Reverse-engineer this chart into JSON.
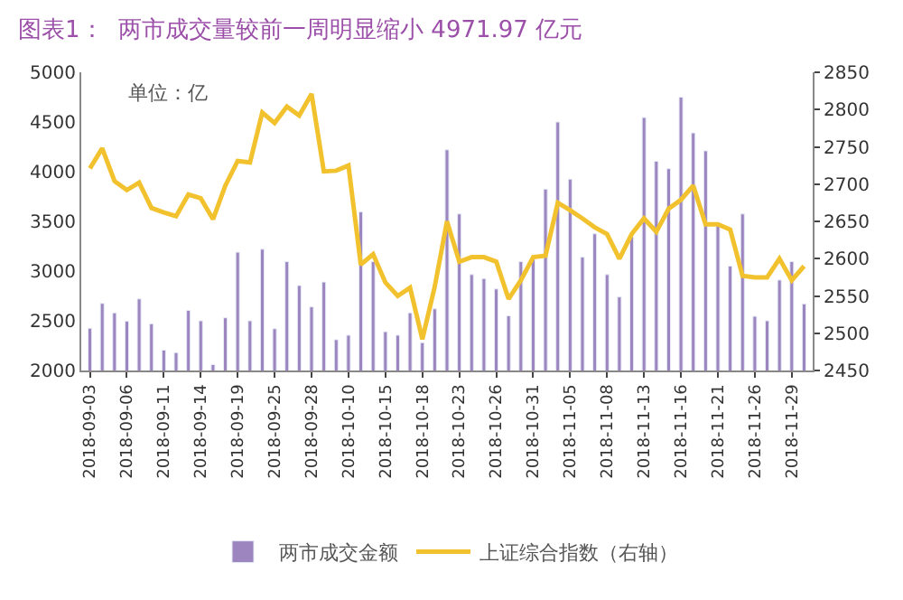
{
  "chart_data": {
    "type": "bar",
    "title": "图表1：  两市成交量较前一周明显缩小 4971.97 亿元",
    "annotations": [
      "单位：亿"
    ],
    "categories": [
      "2018-09-03",
      null,
      null,
      "2018-09-06",
      null,
      null,
      "2018-09-11",
      null,
      null,
      "2018-09-14",
      null,
      null,
      "2018-09-19",
      null,
      null,
      "2018-09-25",
      null,
      null,
      "2018-09-28",
      null,
      null,
      "2018-10-10",
      null,
      null,
      "2018-10-15",
      null,
      null,
      "2018-10-18",
      null,
      null,
      "2018-10-23",
      null,
      null,
      "2018-10-26",
      null,
      null,
      "2018-10-31",
      null,
      null,
      "2018-11-05",
      null,
      null,
      "2018-11-08",
      null,
      null,
      "2018-11-13",
      null,
      null,
      "2018-11-16",
      null,
      null,
      "2018-11-21",
      null,
      null,
      "2018-11-26",
      null,
      null,
      "2018-11-29",
      null
    ],
    "series": [
      {
        "name": "两市成交金额",
        "color": "#9d86c0",
        "values": [
          2425,
          2675,
          2580,
          2495,
          2720,
          2470,
          2205,
          2180,
          2605,
          2500,
          2060,
          2530,
          3190,
          2500,
          3220,
          2420,
          3095,
          2855,
          2640,
          2890,
          2310,
          2355,
          3595,
          3095,
          2390,
          2355,
          2580,
          2280,
          2620,
          4220,
          3575,
          2965,
          2925,
          2820,
          2550,
          3095,
          3125,
          3825,
          4500,
          3925,
          3140,
          3375,
          2965,
          2740,
          3345,
          4545,
          4105,
          4030,
          4750,
          4390,
          4210,
          3455,
          3050,
          3575,
          2545,
          2500,
          2910,
          3095,
          2670
        ]
      },
      {
        "name": "上证综合指数（右轴）",
        "type": "line",
        "axis": "y2",
        "color": "#f2c22e",
        "values": [
          2721,
          2748,
          2704,
          2692,
          2702,
          2668,
          2662,
          2657,
          2686,
          2681,
          2653,
          2698,
          2731,
          2729,
          2796,
          2782,
          2804,
          2792,
          2821,
          2717,
          2718,
          2725,
          2592,
          2606,
          2568,
          2550,
          2561,
          2492,
          2562,
          2650,
          2596,
          2602,
          2602,
          2596,
          2546,
          2571,
          2602,
          2604,
          2675,
          2665,
          2654,
          2642,
          2633,
          2600,
          2633,
          2654,
          2636,
          2667,
          2679,
          2698,
          2646,
          2646,
          2639,
          2577,
          2575,
          2575,
          2600,
          2571,
          2590
        ]
      }
    ],
    "ylim": [
      2000,
      5000
    ],
    "yticks": [
      2000,
      2500,
      3000,
      3500,
      4000,
      4500,
      5000
    ],
    "y2lim": [
      2450,
      2850
    ],
    "y2ticks": [
      2450,
      2500,
      2550,
      2600,
      2650,
      2700,
      2750,
      2800,
      2850
    ],
    "legend": "bottom"
  }
}
